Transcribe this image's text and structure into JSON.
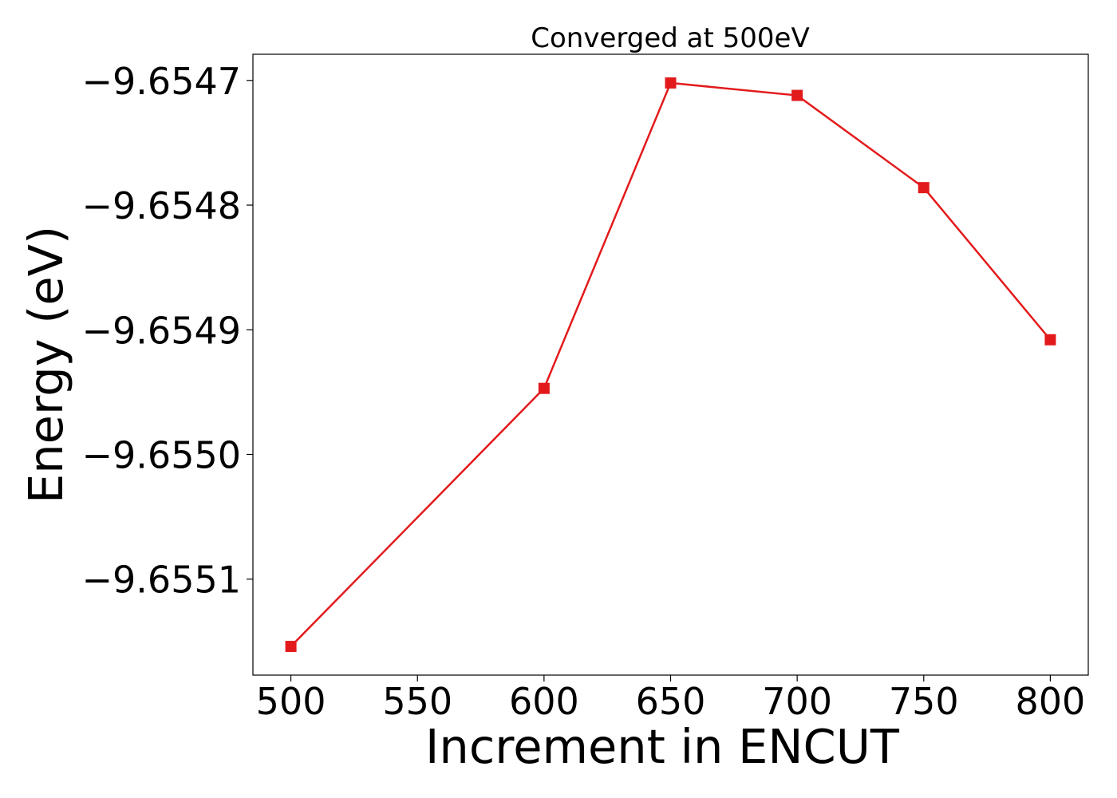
{
  "chart_data": {
    "type": "line",
    "title": "Converged at 500eV",
    "xlabel": "Increment in ENCUT",
    "ylabel": "Energy (eV)",
    "x": [
      500,
      600,
      650,
      700,
      750,
      800
    ],
    "series": [
      {
        "values": [
          -9.655154,
          -9.654947,
          -9.654702,
          -9.654712,
          -9.654786,
          -9.654908
        ],
        "color": "#e31a1c",
        "marker": "square"
      }
    ],
    "xlim": [
      485,
      815
    ],
    "ylim": [
      -9.655177,
      -9.654679
    ],
    "xticks": [
      500,
      550,
      600,
      650,
      700,
      750,
      800
    ],
    "xtick_labels": [
      "500",
      "550",
      "600",
      "650",
      "700",
      "750",
      "800"
    ],
    "yticks": [
      -9.6551,
      -9.655,
      -9.6549,
      -9.6548,
      -9.6547
    ],
    "ytick_labels": [
      "−9.6551",
      "−9.6550",
      "−9.6549",
      "−9.6548",
      "−9.6547"
    ],
    "grid": false,
    "legend": "none"
  }
}
